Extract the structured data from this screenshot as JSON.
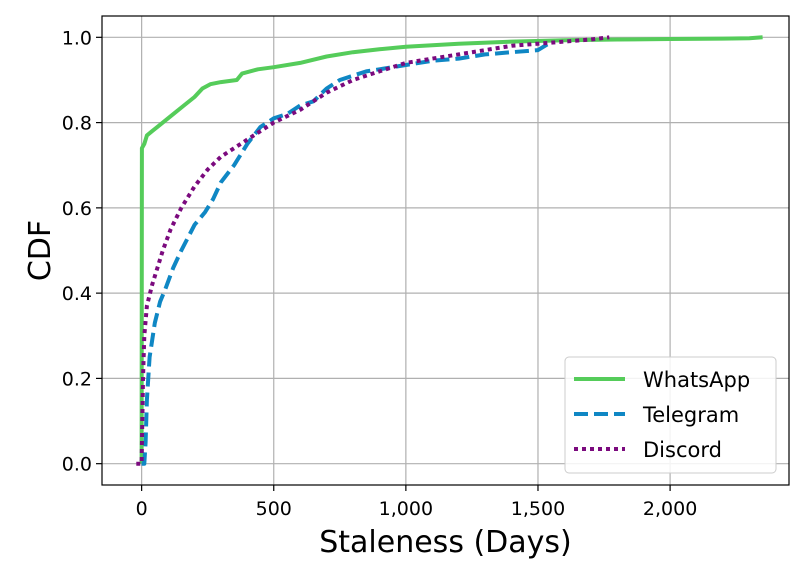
{
  "chart_data": {
    "type": "line",
    "xlabel": "Staleness (Days)",
    "ylabel": "CDF",
    "xlim": [
      -150,
      2450
    ],
    "ylim": [
      -0.05,
      1.05
    ],
    "xticks": [
      {
        "value": 0,
        "label": "0"
      },
      {
        "value": 500,
        "label": "500"
      },
      {
        "value": 1000,
        "label": "1,000"
      },
      {
        "value": 1500,
        "label": "1,500"
      },
      {
        "value": 2000,
        "label": "2,000"
      }
    ],
    "yticks": [
      {
        "value": 0.0,
        "label": "0.0"
      },
      {
        "value": 0.2,
        "label": "0.2"
      },
      {
        "value": 0.4,
        "label": "0.4"
      },
      {
        "value": 0.6,
        "label": "0.6"
      },
      {
        "value": 0.8,
        "label": "0.8"
      },
      {
        "value": 1.0,
        "label": "1.0"
      }
    ],
    "grid": true,
    "legend_position": "bottom-right",
    "series": [
      {
        "name": "WhatsApp",
        "color": "#55cc5a",
        "style": "solid",
        "points": [
          [
            0,
            0
          ],
          [
            1,
            0.74
          ],
          [
            10,
            0.75
          ],
          [
            20,
            0.77
          ],
          [
            40,
            0.78
          ],
          [
            80,
            0.8
          ],
          [
            120,
            0.82
          ],
          [
            160,
            0.84
          ],
          [
            200,
            0.86
          ],
          [
            230,
            0.88
          ],
          [
            260,
            0.89
          ],
          [
            300,
            0.895
          ],
          [
            360,
            0.9
          ],
          [
            380,
            0.915
          ],
          [
            440,
            0.925
          ],
          [
            500,
            0.93
          ],
          [
            600,
            0.94
          ],
          [
            700,
            0.955
          ],
          [
            800,
            0.965
          ],
          [
            900,
            0.972
          ],
          [
            1000,
            0.978
          ],
          [
            1200,
            0.985
          ],
          [
            1400,
            0.99
          ],
          [
            1600,
            0.993
          ],
          [
            1800,
            0.995
          ],
          [
            2000,
            0.996
          ],
          [
            2200,
            0.997
          ],
          [
            2300,
            0.998
          ],
          [
            2350,
            1.0
          ]
        ]
      },
      {
        "name": "Telegram",
        "color": "#0f87c4",
        "style": "dashed",
        "points": [
          [
            0,
            0
          ],
          [
            10,
            0.0
          ],
          [
            15,
            0.05
          ],
          [
            20,
            0.15
          ],
          [
            30,
            0.25
          ],
          [
            50,
            0.33
          ],
          [
            70,
            0.38
          ],
          [
            90,
            0.41
          ],
          [
            120,
            0.46
          ],
          [
            150,
            0.5
          ],
          [
            200,
            0.56
          ],
          [
            240,
            0.59
          ],
          [
            270,
            0.62
          ],
          [
            300,
            0.66
          ],
          [
            350,
            0.7
          ],
          [
            400,
            0.75
          ],
          [
            450,
            0.79
          ],
          [
            500,
            0.81
          ],
          [
            550,
            0.82
          ],
          [
            600,
            0.84
          ],
          [
            650,
            0.85
          ],
          [
            700,
            0.88
          ],
          [
            750,
            0.9
          ],
          [
            800,
            0.91
          ],
          [
            850,
            0.92
          ],
          [
            900,
            0.925
          ],
          [
            1000,
            0.935
          ],
          [
            1100,
            0.945
          ],
          [
            1200,
            0.95
          ],
          [
            1300,
            0.96
          ],
          [
            1400,
            0.965
          ],
          [
            1500,
            0.97
          ],
          [
            1540,
            0.985
          ]
        ]
      },
      {
        "name": "Discord",
        "color": "#7b0a7e",
        "style": "dotted",
        "points": [
          [
            -20,
            0
          ],
          [
            0,
            0
          ],
          [
            5,
            0.2
          ],
          [
            10,
            0.3
          ],
          [
            20,
            0.37
          ],
          [
            40,
            0.42
          ],
          [
            60,
            0.46
          ],
          [
            80,
            0.5
          ],
          [
            110,
            0.55
          ],
          [
            150,
            0.6
          ],
          [
            200,
            0.65
          ],
          [
            250,
            0.69
          ],
          [
            300,
            0.72
          ],
          [
            350,
            0.74
          ],
          [
            400,
            0.76
          ],
          [
            450,
            0.78
          ],
          [
            500,
            0.8
          ],
          [
            600,
            0.83
          ],
          [
            700,
            0.87
          ],
          [
            800,
            0.9
          ],
          [
            900,
            0.92
          ],
          [
            1000,
            0.94
          ],
          [
            1100,
            0.95
          ],
          [
            1200,
            0.96
          ],
          [
            1300,
            0.97
          ],
          [
            1400,
            0.98
          ],
          [
            1500,
            0.985
          ],
          [
            1600,
            0.99
          ],
          [
            1700,
            0.995
          ],
          [
            1770,
            1.0
          ]
        ]
      }
    ]
  }
}
